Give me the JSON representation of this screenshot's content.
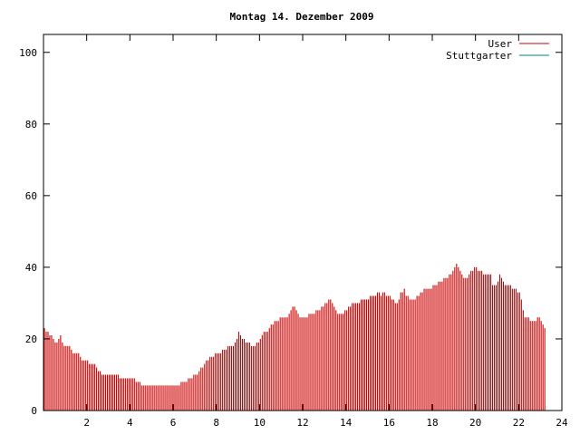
{
  "chart_data": {
    "type": "bar",
    "title": "Montag 14. Dezember 2009",
    "xlabel": "",
    "ylabel": "",
    "xlim": [
      0,
      24
    ],
    "ylim": [
      0,
      105
    ],
    "x_ticks": [
      2,
      4,
      6,
      8,
      10,
      12,
      14,
      16,
      18,
      20,
      22,
      24
    ],
    "y_ticks": [
      0,
      20,
      40,
      60,
      80,
      100
    ],
    "grid": false,
    "legend_position": "top-right",
    "interval_minutes": 5,
    "series": [
      {
        "name": "User",
        "color": "#cc0000",
        "values": [
          23,
          22,
          22,
          21,
          21,
          20,
          19,
          19,
          20,
          21,
          19,
          18,
          18,
          18,
          18,
          17,
          16,
          16,
          16,
          16,
          15,
          14,
          14,
          14,
          14,
          13,
          13,
          13,
          13,
          12,
          11,
          11,
          10,
          10,
          10,
          10,
          10,
          10,
          10,
          10,
          10,
          10,
          9,
          9,
          9,
          9,
          9,
          9,
          9,
          9,
          9,
          8,
          8,
          8,
          7,
          7,
          7,
          7,
          7,
          7,
          7,
          7,
          7,
          7,
          7,
          7,
          7,
          7,
          7,
          7,
          7,
          7,
          7,
          7,
          7,
          7,
          8,
          8,
          8,
          8,
          9,
          9,
          9,
          10,
          10,
          10,
          11,
          12,
          12,
          13,
          14,
          14,
          15,
          15,
          15,
          16,
          16,
          16,
          16,
          17,
          17,
          17,
          18,
          18,
          18,
          18,
          19,
          20,
          22,
          21,
          20,
          20,
          19,
          19,
          19,
          18,
          18,
          18,
          19,
          19,
          20,
          21,
          22,
          22,
          22,
          23,
          24,
          24,
          25,
          25,
          25,
          26,
          26,
          26,
          26,
          26,
          27,
          28,
          29,
          29,
          28,
          27,
          26,
          26,
          26,
          26,
          26,
          27,
          27,
          27,
          27,
          28,
          28,
          28,
          29,
          29,
          30,
          30,
          31,
          31,
          30,
          29,
          28,
          27,
          27,
          27,
          27,
          28,
          28,
          29,
          29,
          30,
          30,
          30,
          30,
          30,
          31,
          31,
          31,
          31,
          31,
          32,
          32,
          32,
          32,
          33,
          33,
          32,
          33,
          33,
          32,
          32,
          32,
          31,
          31,
          30,
          30,
          31,
          33,
          33,
          34,
          32,
          32,
          31,
          31,
          31,
          31,
          32,
          32,
          33,
          33,
          34,
          34,
          34,
          34,
          34,
          35,
          35,
          35,
          36,
          36,
          36,
          37,
          37,
          37,
          38,
          38,
          39,
          40,
          41,
          40,
          39,
          38,
          37,
          37,
          37,
          38,
          39,
          39,
          40,
          40,
          39,
          39,
          39,
          38,
          38,
          38,
          38,
          38,
          35,
          35,
          35,
          36,
          38,
          37,
          36,
          35,
          35,
          35,
          35,
          34,
          34,
          34,
          33,
          33,
          31,
          28,
          26,
          26,
          26,
          25,
          25,
          25,
          25,
          26,
          26,
          25,
          24,
          23
        ]
      },
      {
        "name": "Stuttgarter",
        "color": "#008080",
        "values": []
      }
    ]
  }
}
